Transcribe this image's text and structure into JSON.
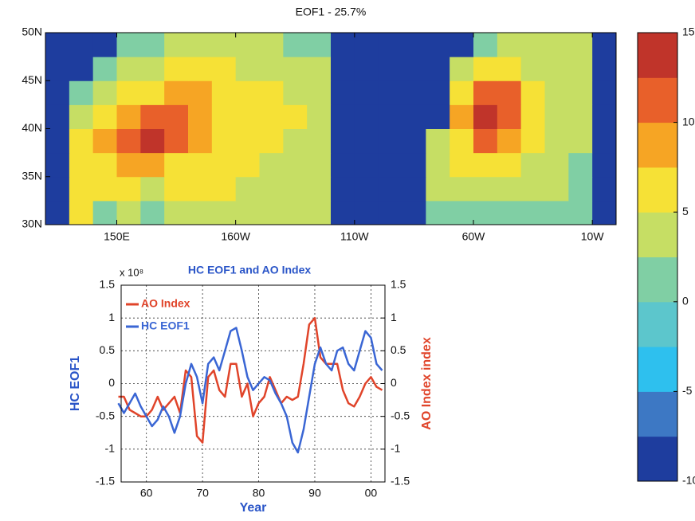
{
  "chart_data": [
    {
      "type": "heatmap",
      "title": "EOF1 - 25.7%",
      "x": [
        125,
        135,
        145,
        155,
        165,
        175,
        185,
        195,
        205,
        215,
        225,
        235,
        245,
        255,
        265,
        275,
        285,
        295,
        305,
        315,
        325,
        335,
        345,
        355
      ],
      "y": [
        31.25,
        33.75,
        36.25,
        38.75,
        41.25,
        43.75,
        46.25,
        48.75
      ],
      "values": [
        [
          -10,
          7,
          2,
          3,
          2,
          3,
          3,
          4,
          4,
          3,
          3,
          3,
          -10,
          -10,
          -10,
          -10,
          2,
          2,
          2,
          2,
          2,
          2,
          1,
          -10
        ],
        [
          -10,
          5,
          5,
          5,
          4,
          5,
          5,
          5,
          4,
          3,
          3,
          4,
          -10,
          -10,
          -10,
          -10,
          3,
          3,
          3,
          4,
          3,
          3,
          2,
          -10
        ],
        [
          -10,
          6,
          7,
          8,
          8,
          7,
          6,
          5,
          5,
          4,
          3,
          3,
          -10,
          -10,
          -10,
          -10,
          4,
          5,
          6,
          6,
          4,
          3,
          2,
          -10
        ],
        [
          -10,
          6,
          9,
          12,
          13,
          11,
          8,
          6,
          5,
          5,
          4,
          4,
          -10,
          -10,
          -10,
          -10,
          3,
          7,
          10,
          9,
          5,
          4,
          3,
          -10
        ],
        [
          -10,
          4,
          6,
          9,
          11,
          10,
          9,
          7,
          6,
          5,
          5,
          4,
          -10,
          -10,
          -10,
          -10,
          -10,
          8,
          13,
          12,
          6,
          4,
          3,
          -10
        ],
        [
          -10,
          2,
          4,
          5,
          7,
          8,
          8,
          7,
          6,
          5,
          4,
          3,
          -10,
          -10,
          -10,
          -10,
          -10,
          7,
          12,
          11,
          6,
          4,
          3,
          -10
        ],
        [
          -10,
          -10,
          2,
          3,
          4,
          5,
          5,
          5,
          4,
          4,
          3,
          3,
          -10,
          -10,
          -10,
          -10,
          -10,
          4,
          7,
          7,
          4,
          3,
          3,
          -10
        ],
        [
          -10,
          -10,
          -10,
          2,
          2,
          3,
          3,
          3,
          3,
          3,
          2,
          2,
          -10,
          -10,
          -10,
          -10,
          -10,
          -10,
          2,
          3,
          3,
          3,
          3,
          -10
        ]
      ],
      "xlim": [
        120,
        360
      ],
      "ylim": [
        30,
        50
      ],
      "xticks": [
        {
          "value": 150,
          "label": "150E"
        },
        {
          "value": 200,
          "label": "160W"
        },
        {
          "value": 250,
          "label": "110W"
        },
        {
          "value": 300,
          "label": "60W"
        },
        {
          "value": 350,
          "label": "10W"
        }
      ],
      "yticks": [
        {
          "value": 30,
          "label": "30N"
        },
        {
          "value": 35,
          "label": "35N"
        },
        {
          "value": 40,
          "label": "40N"
        },
        {
          "value": 45,
          "label": "45N"
        },
        {
          "value": 50,
          "label": "50N"
        }
      ],
      "levels": [
        -10,
        -7.5,
        -5,
        -2.5,
        0,
        2.5,
        5,
        7.5,
        10,
        12.5,
        15
      ],
      "colors": [
        "#1e3d9e",
        "#3d78c4",
        "#2ec0ee",
        "#5cc6cc",
        "#80cfa4",
        "#c6de64",
        "#f6e136",
        "#f6a524",
        "#e8602a",
        "#c0342a"
      ],
      "clim": [
        -10,
        15
      ],
      "cticks": [
        -10,
        -5,
        0,
        5,
        10,
        15
      ]
    },
    {
      "type": "line",
      "title": "HC EOF1 and AO Index",
      "exponent": "x 10⁸",
      "xlabel": "Year",
      "ylabel": "HC EOF1",
      "y2label": "AO Index  index",
      "x": [
        55,
        56,
        57,
        58,
        59,
        60,
        61,
        62,
        63,
        64,
        65,
        66,
        67,
        68,
        69,
        70,
        71,
        72,
        73,
        74,
        75,
        76,
        77,
        78,
        79,
        80,
        81,
        82,
        83,
        84,
        85,
        86,
        87,
        88,
        89,
        90,
        91,
        92,
        93,
        94,
        95,
        96,
        97,
        98,
        99,
        100,
        101,
        102
      ],
      "series": [
        {
          "name": "AO Index",
          "color": "#e0442a",
          "axis": "y2",
          "values": [
            -0.2,
            -0.2,
            -0.4,
            -0.45,
            -0.5,
            -0.5,
            -0.4,
            -0.2,
            -0.4,
            -0.3,
            -0.2,
            -0.45,
            0.2,
            0.1,
            -0.8,
            -0.9,
            0.1,
            0.2,
            -0.1,
            -0.2,
            0.3,
            0.3,
            -0.2,
            0,
            -0.5,
            -0.3,
            -0.2,
            0.1,
            -0.1,
            -0.3,
            -0.2,
            -0.25,
            -0.2,
            0.3,
            0.9,
            1.0,
            0.4,
            0.3,
            0.3,
            0.3,
            -0.1,
            -0.3,
            -0.35,
            -0.2,
            0,
            0.1,
            -0.05,
            -0.1
          ]
        },
        {
          "name": "HC EOF1",
          "color": "#3a66d4",
          "values": [
            -0.3,
            -0.45,
            -0.3,
            -0.15,
            -0.35,
            -0.5,
            -0.65,
            -0.55,
            -0.35,
            -0.5,
            -0.75,
            -0.5,
            0,
            0.3,
            0.1,
            -0.3,
            0.3,
            0.4,
            0.2,
            0.5,
            0.8,
            0.85,
            0.5,
            0.1,
            -0.1,
            0,
            0.1,
            0.05,
            -0.15,
            -0.3,
            -0.5,
            -0.9,
            -1.05,
            -0.7,
            -0.2,
            0.3,
            0.55,
            0.3,
            0.2,
            0.5,
            0.55,
            0.3,
            0.2,
            0.5,
            0.8,
            0.7,
            0.3,
            0.2
          ]
        }
      ],
      "xlim": [
        55.5,
        102.5
      ],
      "ylim": [
        -1.5,
        1.5
      ],
      "y2lim": [
        -1.5,
        1.5
      ],
      "xticks": [
        60,
        70,
        80,
        90,
        {
          "value": 100,
          "label": "00"
        }
      ],
      "yticks": [
        -1.5,
        -1,
        -0.5,
        0,
        0.5,
        1,
        1.5
      ],
      "y2ticks": [
        -1.5,
        -1,
        -0.5,
        0,
        0.5,
        1,
        1.5
      ],
      "grid": true,
      "legend": "upper-left"
    }
  ]
}
